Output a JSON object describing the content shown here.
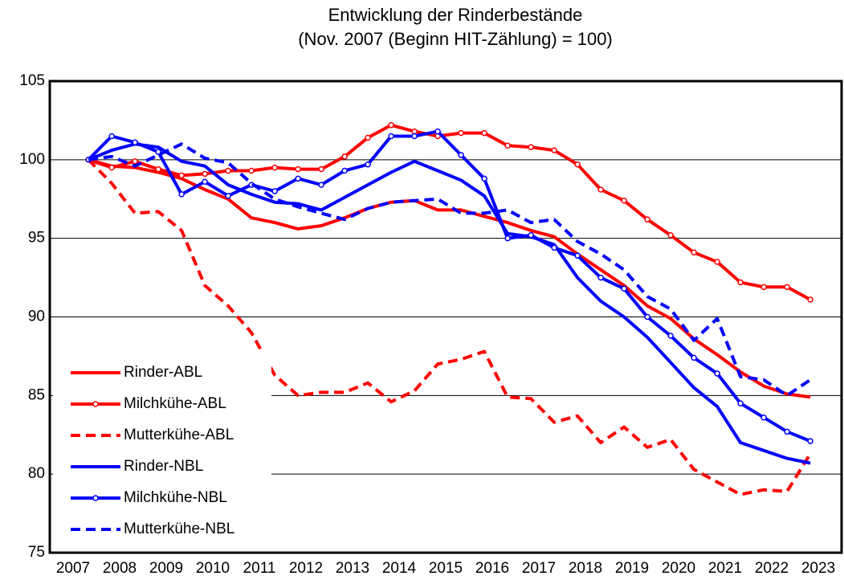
{
  "chart_data": {
    "type": "line",
    "title": "Entwicklung der Rinderbestände",
    "subtitle": "(Nov. 2007 (Beginn HIT-Zählung) = 100)",
    "x": [
      2007.83,
      2008.33,
      2008.83,
      2009.33,
      2009.83,
      2010.33,
      2010.83,
      2011.33,
      2011.83,
      2012.33,
      2012.83,
      2013.33,
      2013.83,
      2014.33,
      2014.83,
      2015.33,
      2015.83,
      2016.33,
      2016.83,
      2017.33,
      2017.83,
      2018.33,
      2018.83,
      2019.33,
      2019.83,
      2020.33,
      2020.83,
      2021.33,
      2021.83,
      2022.33,
      2022.83,
      2023.33
    ],
    "series": [
      {
        "name": "Rinder-ABL",
        "color": "#ff0000",
        "linestyle": "solid",
        "marker": false,
        "values": [
          100,
          99.6,
          99.5,
          99.2,
          98.8,
          98.1,
          97.5,
          96.3,
          96.0,
          95.6,
          95.8,
          96.3,
          96.9,
          97.3,
          97.4,
          96.8,
          96.8,
          96.4,
          96.0,
          95.5,
          95.1,
          94.0,
          93.0,
          92.0,
          90.7,
          89.9,
          88.6,
          87.6,
          86.5,
          85.6,
          85.1,
          84.9
        ]
      },
      {
        "name": "Milchkühe-ABL",
        "color": "#ff0000",
        "linestyle": "solid",
        "marker": true,
        "values": [
          100,
          99.5,
          99.9,
          99.4,
          99.0,
          99.1,
          99.3,
          99.3,
          99.5,
          99.4,
          99.4,
          100.2,
          101.4,
          102.2,
          101.8,
          101.5,
          101.7,
          101.7,
          100.9,
          100.8,
          100.6,
          99.7,
          98.1,
          97.4,
          96.2,
          95.2,
          94.1,
          93.5,
          92.2,
          91.9,
          91.9,
          91.1
        ]
      },
      {
        "name": "Mutterkühe-ABL",
        "color": "#ff0000",
        "linestyle": "dashed",
        "marker": false,
        "values": [
          100,
          98.5,
          96.6,
          96.7,
          95.5,
          92.0,
          90.7,
          89.0,
          86.3,
          85.0,
          85.2,
          85.2,
          85.8,
          84.6,
          85.3,
          87.0,
          87.3,
          87.8,
          84.9,
          84.8,
          83.3,
          83.7,
          82.0,
          83.0,
          81.7,
          82.2,
          80.3,
          79.5,
          78.7,
          79.0,
          78.9,
          81.3
        ]
      },
      {
        "name": "Rinder-NBL",
        "color": "#0000ff",
        "linestyle": "solid",
        "marker": false,
        "values": [
          100,
          100.6,
          101.0,
          100.8,
          99.9,
          99.6,
          98.4,
          97.8,
          97.3,
          97.2,
          96.8,
          97.6,
          98.4,
          99.2,
          99.9,
          99.3,
          98.7,
          97.7,
          95.3,
          95.1,
          94.6,
          92.5,
          91.0,
          90.0,
          88.7,
          87.1,
          85.5,
          84.3,
          82.0,
          81.5,
          81.0,
          80.7
        ]
      },
      {
        "name": "Milchkühe-NBL",
        "color": "#0000ff",
        "linestyle": "solid",
        "marker": true,
        "values": [
          100,
          101.5,
          101.1,
          100.5,
          97.8,
          98.6,
          97.7,
          98.4,
          98.0,
          98.8,
          98.4,
          99.3,
          99.7,
          101.5,
          101.5,
          101.8,
          100.3,
          98.8,
          95.0,
          95.2,
          94.4,
          93.9,
          92.5,
          91.8,
          90.0,
          88.8,
          87.4,
          86.4,
          84.5,
          83.6,
          82.7,
          82.1
        ]
      },
      {
        "name": "Mutterkühe-NBL",
        "color": "#0000ff",
        "linestyle": "dashed",
        "marker": false,
        "values": [
          100,
          100.2,
          99.6,
          100.3,
          101.0,
          100.1,
          99.8,
          98.5,
          97.5,
          97.0,
          96.6,
          96.2,
          96.9,
          97.3,
          97.4,
          97.5,
          96.6,
          96.6,
          96.8,
          96.0,
          96.2,
          94.8,
          94.0,
          93.0,
          91.3,
          90.5,
          88.5,
          89.9,
          86.2,
          86.0,
          85.0,
          86.0
        ]
      }
    ],
    "xlim": [
      2007,
      2024
    ],
    "xticks": [
      {
        "value": 2007.5,
        "label": "2007"
      },
      {
        "value": 2008.5,
        "label": "2008"
      },
      {
        "value": 2009.5,
        "label": "2009"
      },
      {
        "value": 2010.5,
        "label": "2010"
      },
      {
        "value": 2011.5,
        "label": "2011"
      },
      {
        "value": 2012.5,
        "label": "2012"
      },
      {
        "value": 2013.5,
        "label": "2013"
      },
      {
        "value": 2014.5,
        "label": "2014"
      },
      {
        "value": 2015.5,
        "label": "2015"
      },
      {
        "value": 2016.5,
        "label": "2016"
      },
      {
        "value": 2017.5,
        "label": "2017"
      },
      {
        "value": 2018.5,
        "label": "2018"
      },
      {
        "value": 2019.5,
        "label": "2019"
      },
      {
        "value": 2020.5,
        "label": "2020"
      },
      {
        "value": 2021.5,
        "label": "2021"
      },
      {
        "value": 2022.5,
        "label": "2022"
      },
      {
        "value": 2023.5,
        "label": "2023"
      }
    ],
    "ylim": [
      75,
      105
    ],
    "yticks": [
      75,
      80,
      85,
      90,
      95,
      100,
      105
    ],
    "grid": true,
    "legend": "lower left"
  }
}
